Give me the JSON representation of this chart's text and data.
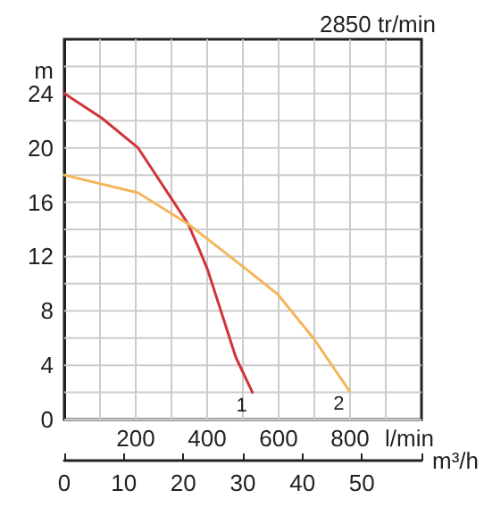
{
  "chart_data": {
    "type": "line",
    "title": "2850 tr/min",
    "xlabel": "m³/h",
    "x2label": "l/min",
    "ylabel": "m",
    "xlim": [
      0,
      60
    ],
    "xticks": [
      0,
      10,
      20,
      30,
      40,
      50
    ],
    "x2lim": [
      0,
      1000
    ],
    "x2ticks": [
      {
        "value": 100,
        "label": null
      },
      200,
      {
        "value": 300,
        "label": null
      },
      400,
      {
        "value": 500,
        "label": null
      },
      600,
      {
        "value": 700,
        "label": null
      },
      800,
      {
        "value": 900,
        "label": null
      }
    ],
    "ylim": [
      0,
      28
    ],
    "yticks": [
      0,
      {
        "value": 2,
        "label": null
      },
      4,
      {
        "value": 6,
        "label": null
      },
      8,
      {
        "value": 10,
        "label": null
      },
      12,
      {
        "value": 14,
        "label": null
      },
      16,
      {
        "value": 18,
        "label": null
      },
      20,
      {
        "value": 22,
        "label": null
      },
      24,
      {
        "value": 26,
        "label": null
      }
    ],
    "grid": true,
    "marker": "none",
    "line_style": "solid",
    "series": [
      {
        "name": "1",
        "color": "#d0343a",
        "x": [
          0,
          6.3,
          12.4,
          20.8,
          22.7,
          24.1,
          28.8,
          31.6
        ],
        "values": [
          24,
          22.2,
          20,
          14.4,
          12.5,
          11,
          4.6,
          2
        ]
      },
      {
        "name": "2",
        "color": "#f5b55a",
        "x": [
          0,
          12.4,
          20.8,
          30.2,
          35.9,
          42,
          47.9
        ],
        "values": [
          18,
          16.7,
          14.4,
          11.2,
          9.2,
          5.9,
          2.1
        ]
      }
    ]
  }
}
